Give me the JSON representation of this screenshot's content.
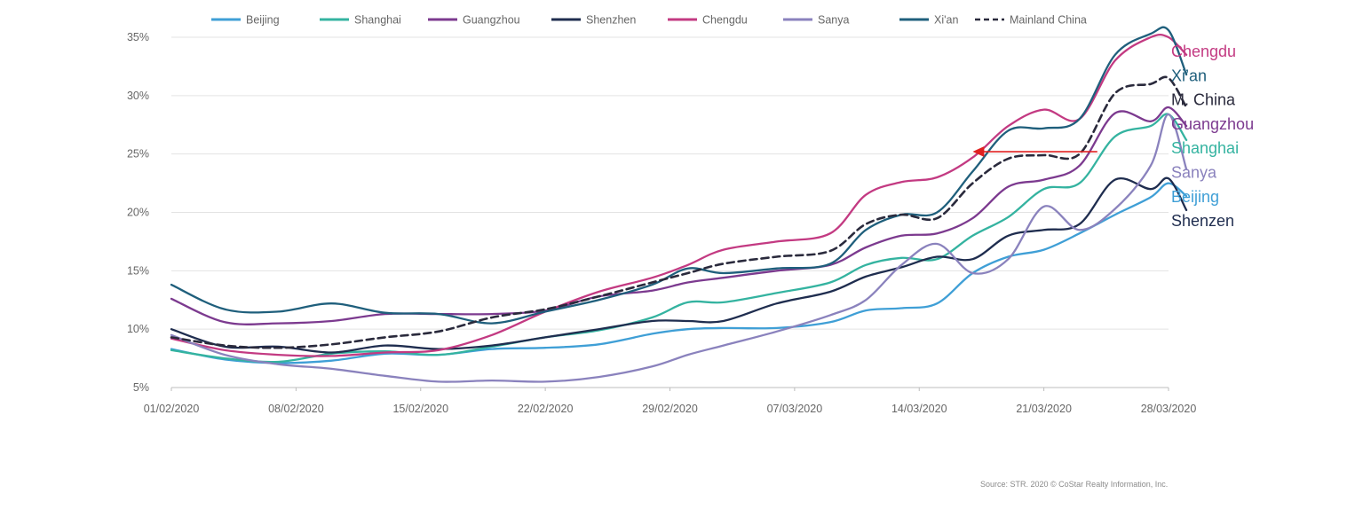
{
  "chart_data": {
    "type": "line",
    "ylim": [
      5,
      35
    ],
    "y_ticks": [
      "5%",
      "10%",
      "15%",
      "20%",
      "25%",
      "30%",
      "35%"
    ],
    "y_tick_values": [
      5,
      10,
      15,
      20,
      25,
      30,
      35
    ],
    "x_range": [
      "2020-02-01",
      "2020-03-28"
    ],
    "x_ticks": [
      {
        "label": "01/02/2020",
        "date": "2020-02-01"
      },
      {
        "label": "08/02/2020",
        "date": "2020-02-08"
      },
      {
        "label": "15/02/2020",
        "date": "2020-02-15"
      },
      {
        "label": "22/02/2020",
        "date": "2020-02-22"
      },
      {
        "label": "29/02/2020",
        "date": "2020-02-29"
      },
      {
        "label": "07/03/2020",
        "date": "2020-03-07"
      },
      {
        "label": "14/03/2020",
        "date": "2020-03-14"
      },
      {
        "label": "21/03/2020",
        "date": "2020-03-21"
      },
      {
        "label": "28/03/2020",
        "date": "2020-03-28"
      }
    ],
    "grid": true,
    "legend_position": "top",
    "x": [
      "2020-02-01",
      "2020-02-04",
      "2020-02-07",
      "2020-02-10",
      "2020-02-13",
      "2020-02-16",
      "2020-02-19",
      "2020-02-22",
      "2020-02-25",
      "2020-02-28",
      "2020-03-01",
      "2020-03-03",
      "2020-03-06",
      "2020-03-09",
      "2020-03-11",
      "2020-03-13",
      "2020-03-15",
      "2020-03-17",
      "2020-03-19",
      "2020-03-21",
      "2020-03-23",
      "2020-03-25",
      "2020-03-27",
      "2020-03-28",
      "2020-03-29"
    ],
    "series": [
      {
        "name": "Beijing",
        "color": "#3f9fd6",
        "dash": false,
        "values": [
          8.3,
          7.4,
          7.1,
          7.3,
          7.9,
          7.8,
          8.3,
          8.4,
          8.7,
          9.6,
          10.0,
          10.1,
          10.1,
          10.6,
          11.6,
          11.8,
          12.2,
          14.8,
          16.2,
          16.8,
          18.2,
          19.8,
          21.3,
          22.5,
          21.4
        ],
        "end_label": "Beijing"
      },
      {
        "name": "Shanghai",
        "color": "#34b3a0",
        "dash": false,
        "values": [
          8.2,
          7.5,
          7.2,
          7.9,
          8.1,
          7.8,
          8.5,
          9.3,
          9.9,
          11.0,
          12.3,
          12.3,
          13.1,
          14.0,
          15.5,
          16.1,
          16.0,
          18.0,
          19.6,
          22.0,
          22.5,
          26.5,
          27.4,
          28.4,
          26.2
        ],
        "end_label": "Shanghai"
      },
      {
        "name": "Guangzhou",
        "color": "#7c3a8f",
        "dash": false,
        "values": [
          12.6,
          10.6,
          10.5,
          10.7,
          11.3,
          11.3,
          11.3,
          11.6,
          12.8,
          13.3,
          14.0,
          14.4,
          15.0,
          15.5,
          17.0,
          18.0,
          18.2,
          19.5,
          22.2,
          22.8,
          24.0,
          28.5,
          27.8,
          29.0,
          27.4
        ],
        "end_label": "Guangzhou"
      },
      {
        "name": "Shenzhen",
        "color": "#1f2d4f",
        "dash": false,
        "values": [
          10.0,
          8.5,
          8.5,
          8.0,
          8.6,
          8.3,
          8.6,
          9.3,
          10.0,
          10.7,
          10.7,
          10.7,
          12.2,
          13.2,
          14.5,
          15.3,
          16.2,
          16.0,
          18.0,
          18.5,
          19.0,
          22.8,
          22.0,
          22.9,
          20.2
        ],
        "end_label": "Shenzen"
      },
      {
        "name": "Chengdu",
        "color": "#c33a82",
        "dash": false,
        "values": [
          9.2,
          8.2,
          7.8,
          7.7,
          8.0,
          8.2,
          9.5,
          11.5,
          13.2,
          14.4,
          15.5,
          16.8,
          17.5,
          18.2,
          21.5,
          22.6,
          23.0,
          24.7,
          27.4,
          28.8,
          28.0,
          33.0,
          35.0,
          35.0,
          33.5
        ],
        "end_label": "Chengdu"
      },
      {
        "name": "Sanya",
        "color": "#8a82bd",
        "dash": false,
        "values": [
          9.5,
          7.8,
          7.0,
          6.6,
          6.0,
          5.5,
          5.6,
          5.5,
          5.9,
          6.8,
          7.8,
          8.6,
          9.8,
          11.2,
          12.5,
          15.5,
          17.3,
          14.8,
          16.0,
          20.5,
          18.5,
          20.3,
          24.0,
          28.4,
          23.7
        ],
        "end_label": "Sanya"
      },
      {
        "name": "Xi'an",
        "color": "#1f5f7c",
        "dash": false,
        "values": [
          13.8,
          11.7,
          11.5,
          12.2,
          11.4,
          11.3,
          10.5,
          11.5,
          12.5,
          13.8,
          15.2,
          14.8,
          15.2,
          15.6,
          18.5,
          19.8,
          20.0,
          23.5,
          27.0,
          27.2,
          28.0,
          33.5,
          35.3,
          35.6,
          31.8
        ],
        "end_label": "Xi’an"
      },
      {
        "name": "Mainland China",
        "color": "#2a2a3c",
        "dash": true,
        "values": [
          9.3,
          8.6,
          8.4,
          8.7,
          9.3,
          9.8,
          11.0,
          11.7,
          12.8,
          14.0,
          14.8,
          15.6,
          16.2,
          16.7,
          19.0,
          19.8,
          19.5,
          22.5,
          24.6,
          24.9,
          25.0,
          30.2,
          31.0,
          31.5,
          29.0
        ],
        "end_label": "M. China"
      }
    ],
    "end_labels_order": [
      "Chengdu",
      "Xi’an",
      "M. China",
      "Guangzhou",
      "Shanghai",
      "Sanya",
      "Beijing",
      "Shenzen"
    ],
    "annotation": {
      "type": "arrow",
      "color": "#e02020",
      "from_date": "2020-03-24",
      "to_date": "2020-03-17",
      "y": 25.2
    },
    "source": "Source: STR. 2020 © CoStar Realty Information, Inc."
  }
}
